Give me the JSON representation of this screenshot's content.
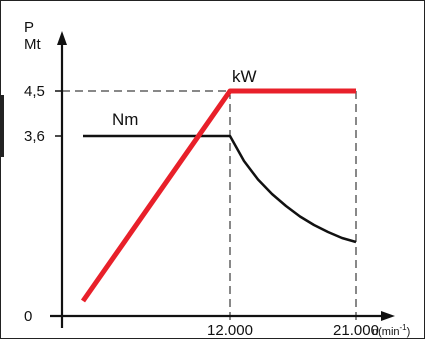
{
  "chart_data": {
    "type": "line",
    "title": "",
    "ylabel_lines": [
      "P",
      "Mt"
    ],
    "xlabel_unit": "n(min",
    "xlabel_unit_sup": "-1",
    "xlabel_unit_close": ")",
    "x_ticks": [
      {
        "value": 12000,
        "label": "12.000"
      },
      {
        "value": 21000,
        "label": "21.000"
      }
    ],
    "y_ticks": [
      {
        "value": 0,
        "label": "0"
      },
      {
        "value": 3.6,
        "label": "3,6"
      },
      {
        "value": 4.5,
        "label": "4,5"
      }
    ],
    "xlim": [
      0,
      24000
    ],
    "ylim": [
      0,
      5.4
    ],
    "grid": false,
    "series": [
      {
        "name": "kW",
        "color": "#e8202a",
        "points": [
          [
            1500,
            0.3
          ],
          [
            12000,
            4.5
          ],
          [
            21000,
            4.5
          ]
        ]
      },
      {
        "name": "Nm",
        "color": "#111111",
        "points": [
          [
            1500,
            3.6
          ],
          [
            12000,
            3.6
          ],
          [
            13000,
            3.1
          ],
          [
            14000,
            2.73
          ],
          [
            15000,
            2.44
          ],
          [
            16000,
            2.2
          ],
          [
            17000,
            1.99
          ],
          [
            18000,
            1.82
          ],
          [
            19000,
            1.68
          ],
          [
            20000,
            1.56
          ],
          [
            21000,
            1.48
          ]
        ]
      }
    ]
  }
}
